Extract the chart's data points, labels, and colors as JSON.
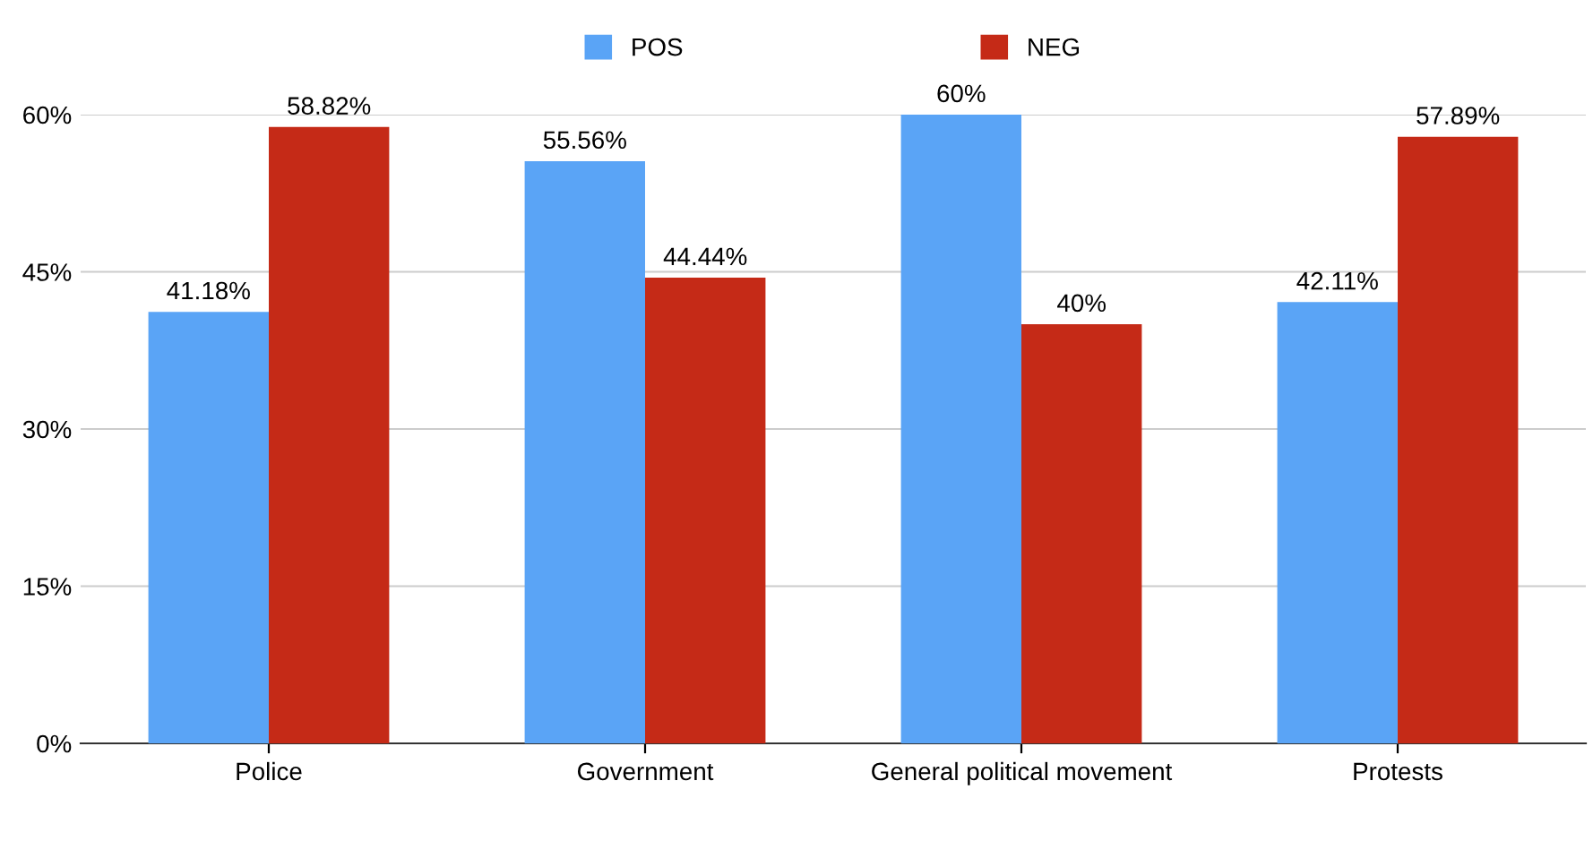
{
  "chart_data": {
    "type": "bar",
    "categories": [
      "Police",
      "Government",
      "General political movement",
      "Protests"
    ],
    "series": [
      {
        "name": "POS",
        "color": "#5aa4f6",
        "values": [
          41.18,
          55.56,
          60,
          42.11
        ],
        "value_labels": [
          "41.18%",
          "55.56%",
          "60%",
          "42.11%"
        ]
      },
      {
        "name": "NEG",
        "color": "#c52a17",
        "values": [
          58.82,
          44.44,
          40,
          57.89
        ],
        "value_labels": [
          "58.82%",
          "44.44%",
          "40%",
          "57.89%"
        ]
      }
    ],
    "ylim": [
      0,
      60
    ],
    "yticks": [
      {
        "value": 0,
        "label": "0%"
      },
      {
        "value": 15,
        "label": "15%"
      },
      {
        "value": 30,
        "label": "30%"
      },
      {
        "value": 45,
        "label": "45%"
      },
      {
        "value": 60,
        "label": "60%"
      }
    ],
    "grid": "y",
    "legend": "top"
  }
}
